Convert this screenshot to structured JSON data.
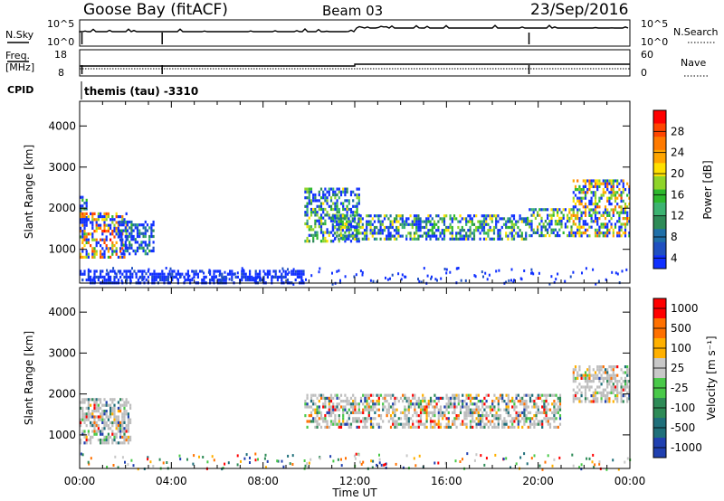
{
  "header": {
    "station": "Goose Bay (fitACF)",
    "beam": "Beam 03",
    "date": "23/Sep/2016"
  },
  "status_panel": {
    "nsky_label": "N.Sky",
    "nsky_ticks": [
      "10^5",
      "10^0"
    ],
    "nsearch_label": "N.Search",
    "nsearch_ticks": [
      "10^5",
      "10^0"
    ],
    "freq_label_1": "Freq.",
    "freq_label_2": "[MHz]",
    "freq_ticks": [
      "18",
      "8"
    ],
    "nave_label": "Nave",
    "nave_ticks": [
      "60",
      "0"
    ],
    "cpid_label": "CPID",
    "cpid_value": "themis (tau) -3310"
  },
  "chart_data": [
    {
      "type": "heatmap",
      "parameter": "power",
      "ylabel": "Slant Range [km]",
      "xlabel": "Time UT",
      "x_ticks": [
        "00:00",
        "04:00",
        "08:00",
        "12:00",
        "16:00",
        "20:00",
        "00:00"
      ],
      "xlim_hours": [
        0,
        24
      ],
      "ylim_km": [
        180,
        4600
      ],
      "y_ticks": [
        1000,
        2000,
        3000,
        4000
      ],
      "colorbar_label": "Power [dB]",
      "colorbar_ticks": [
        "28",
        "24",
        "20",
        "16",
        "12",
        "8",
        "4"
      ],
      "colorbar_range": [
        0,
        30
      ],
      "colors": [
        "#1030ff",
        "#2050c0",
        "#1f6fa8",
        "#2e8b57",
        "#3cb371",
        "#2db82d",
        "#8fd42a",
        "#ffe000",
        "#ffa500",
        "#ff7a00",
        "#ff4500",
        "#ff0000"
      ],
      "echo_regions": [
        {
          "t": [
            0.0,
            0.3
          ],
          "r": [
            1700,
            2300
          ],
          "level": 0.3
        },
        {
          "t": [
            0.0,
            2.0
          ],
          "r": [
            800,
            1900
          ],
          "level": 0.72
        },
        {
          "t": [
            1.7,
            3.2
          ],
          "r": [
            900,
            1700
          ],
          "level": 0.2
        },
        {
          "t": [
            0.0,
            9.8
          ],
          "r": [
            180,
            500
          ],
          "level": 0.1
        },
        {
          "t": [
            9.8,
            12.2
          ],
          "r": [
            1200,
            2500
          ],
          "level": 0.4
        },
        {
          "t": [
            11.0,
            19.5
          ],
          "r": [
            1250,
            1850
          ],
          "level": 0.42
        },
        {
          "t": [
            19.5,
            21.5
          ],
          "r": [
            1300,
            2000
          ],
          "level": 0.45
        },
        {
          "t": [
            21.5,
            24.0
          ],
          "r": [
            1300,
            2700
          ],
          "level": 0.62
        }
      ]
    },
    {
      "type": "heatmap",
      "parameter": "velocity",
      "ylabel": "Slant Range [km]",
      "xlabel": "Time UT",
      "x_ticks": [
        "00:00",
        "04:00",
        "08:00",
        "12:00",
        "16:00",
        "20:00",
        "00:00"
      ],
      "xlim_hours": [
        0,
        24
      ],
      "ylim_km": [
        180,
        4600
      ],
      "y_ticks": [
        1000,
        2000,
        3000,
        4000
      ],
      "colorbar_label": "Velocity [m s⁻¹]",
      "colorbar_ticks": [
        "1000",
        "500",
        "100",
        "25",
        "-25",
        "-100",
        "-500",
        "-1000"
      ],
      "colors": [
        "#2040b0",
        "#1f6f7a",
        "#2e8b57",
        "#49c949",
        "#c8c8c8",
        "#ffb000",
        "#ff7000",
        "#ff0000"
      ],
      "ground_scatter_color": "#bebebe",
      "echo_regions": [
        {
          "t": [
            0.0,
            2.2
          ],
          "r": [
            800,
            1900
          ],
          "level": 0.65
        },
        {
          "t": [
            9.8,
            21.0
          ],
          "r": [
            1200,
            2000
          ],
          "level": 0.5
        },
        {
          "t": [
            21.5,
            24.0
          ],
          "r": [
            1800,
            2700
          ],
          "level": 0.7
        }
      ]
    }
  ],
  "x_axis_title": "Time UT"
}
